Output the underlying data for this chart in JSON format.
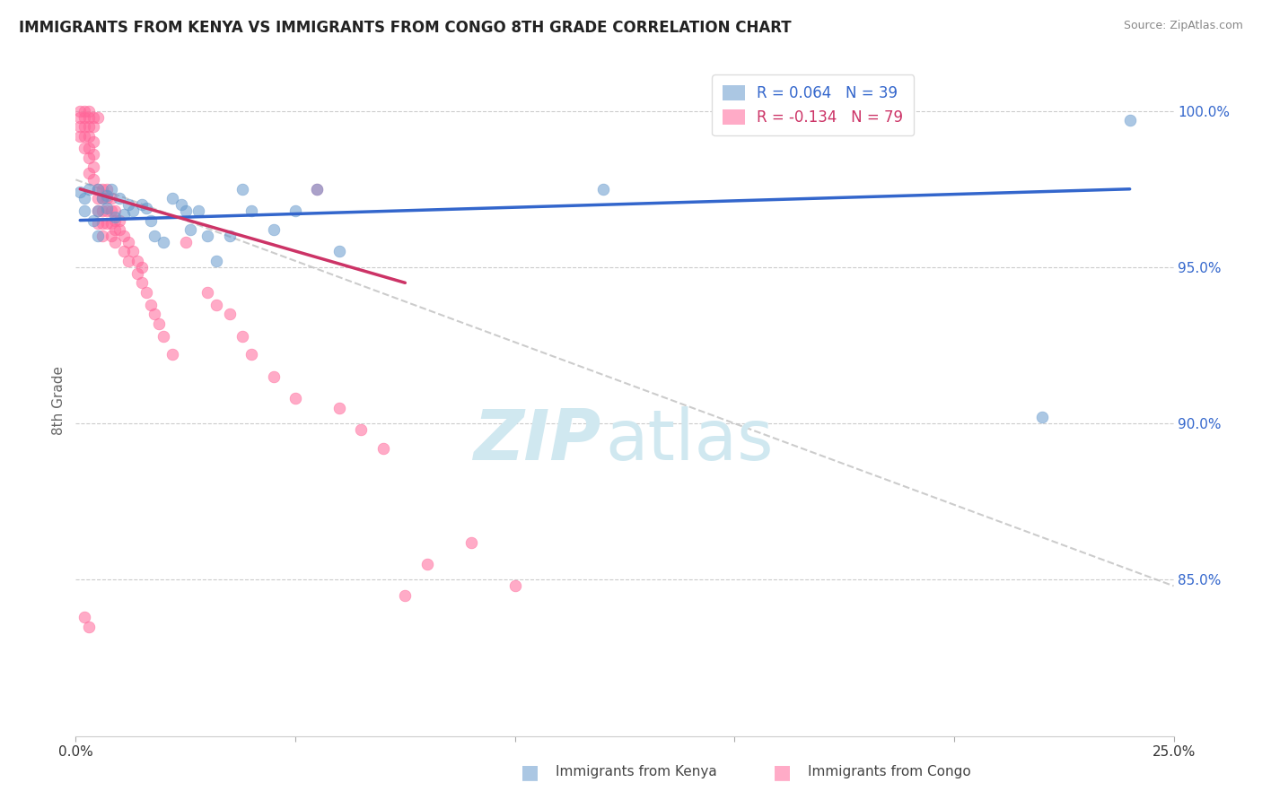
{
  "title": "IMMIGRANTS FROM KENYA VS IMMIGRANTS FROM CONGO 8TH GRADE CORRELATION CHART",
  "source": "Source: ZipAtlas.com",
  "ylabel": "8th Grade",
  "xlim": [
    0.0,
    0.25
  ],
  "ylim": [
    0.8,
    1.015
  ],
  "yticks": [
    0.85,
    0.9,
    0.95,
    1.0
  ],
  "ytick_labels": [
    "85.0%",
    "90.0%",
    "95.0%",
    "100.0%"
  ],
  "xticks": [
    0.0,
    0.05,
    0.1,
    0.15,
    0.2,
    0.25
  ],
  "xtick_labels": [
    "0.0%",
    "",
    "",
    "",
    "",
    "25.0%"
  ],
  "legend_kenya_r": "R = 0.064",
  "legend_kenya_n": "N = 39",
  "legend_congo_r": "R = -0.134",
  "legend_congo_n": "N = 79",
  "kenya_color": "#6699cc",
  "congo_color": "#ff6699",
  "kenya_line_color": "#3366cc",
  "congo_line_color": "#cc3366",
  "watermark_color": "#d0e8f0",
  "kenya_scatter_x": [
    0.001,
    0.002,
    0.002,
    0.003,
    0.004,
    0.005,
    0.005,
    0.006,
    0.007,
    0.007,
    0.008,
    0.009,
    0.01,
    0.011,
    0.012,
    0.013,
    0.015,
    0.016,
    0.017,
    0.018,
    0.02,
    0.022,
    0.024,
    0.025,
    0.026,
    0.028,
    0.03,
    0.032,
    0.035,
    0.038,
    0.04,
    0.045,
    0.05,
    0.055,
    0.06,
    0.12,
    0.22,
    0.24,
    0.005
  ],
  "kenya_scatter_y": [
    0.974,
    0.972,
    0.968,
    0.975,
    0.965,
    0.975,
    0.968,
    0.972,
    0.973,
    0.969,
    0.975,
    0.966,
    0.972,
    0.967,
    0.97,
    0.968,
    0.97,
    0.969,
    0.965,
    0.96,
    0.958,
    0.972,
    0.97,
    0.968,
    0.962,
    0.968,
    0.96,
    0.952,
    0.96,
    0.975,
    0.968,
    0.962,
    0.968,
    0.975,
    0.955,
    0.975,
    0.902,
    0.997,
    0.96
  ],
  "congo_scatter_x": [
    0.001,
    0.001,
    0.001,
    0.001,
    0.002,
    0.002,
    0.002,
    0.002,
    0.002,
    0.003,
    0.003,
    0.003,
    0.003,
    0.003,
    0.003,
    0.003,
    0.004,
    0.004,
    0.004,
    0.004,
    0.004,
    0.004,
    0.005,
    0.005,
    0.005,
    0.005,
    0.005,
    0.006,
    0.006,
    0.006,
    0.006,
    0.006,
    0.007,
    0.007,
    0.007,
    0.007,
    0.008,
    0.008,
    0.008,
    0.008,
    0.009,
    0.009,
    0.009,
    0.009,
    0.01,
    0.01,
    0.011,
    0.011,
    0.012,
    0.012,
    0.013,
    0.014,
    0.014,
    0.015,
    0.015,
    0.016,
    0.017,
    0.018,
    0.019,
    0.02,
    0.022,
    0.025,
    0.03,
    0.032,
    0.035,
    0.038,
    0.04,
    0.045,
    0.05,
    0.055,
    0.06,
    0.065,
    0.07,
    0.075,
    0.08,
    0.09,
    0.1,
    0.002,
    0.003
  ],
  "congo_scatter_y": [
    0.998,
    0.995,
    0.992,
    1.0,
    0.998,
    0.995,
    0.992,
    0.988,
    1.0,
    0.998,
    0.995,
    0.992,
    0.988,
    0.985,
    0.98,
    1.0,
    0.998,
    0.995,
    0.99,
    0.986,
    0.982,
    0.978,
    0.975,
    0.972,
    0.968,
    0.964,
    0.998,
    0.975,
    0.972,
    0.968,
    0.964,
    0.96,
    0.975,
    0.972,
    0.968,
    0.964,
    0.972,
    0.968,
    0.964,
    0.96,
    0.968,
    0.965,
    0.962,
    0.958,
    0.965,
    0.962,
    0.96,
    0.955,
    0.958,
    0.952,
    0.955,
    0.952,
    0.948,
    0.95,
    0.945,
    0.942,
    0.938,
    0.935,
    0.932,
    0.928,
    0.922,
    0.958,
    0.942,
    0.938,
    0.935,
    0.928,
    0.922,
    0.915,
    0.908,
    0.975,
    0.905,
    0.898,
    0.892,
    0.845,
    0.855,
    0.862,
    0.848,
    0.838,
    0.835
  ],
  "kenya_trend_x": [
    0.001,
    0.24
  ],
  "kenya_trend_y": [
    0.965,
    0.975
  ],
  "congo_trend_x": [
    0.001,
    0.075
  ],
  "congo_trend_y": [
    0.975,
    0.945
  ],
  "dash_trend_x": [
    0.0,
    0.25
  ],
  "dash_trend_y": [
    0.978,
    0.848
  ]
}
